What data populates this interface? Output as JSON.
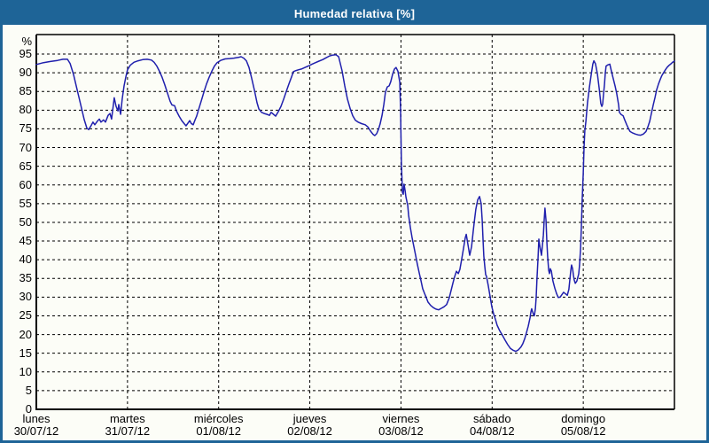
{
  "window": {
    "title": "Humedad relativa [%]"
  },
  "colors": {
    "titlebar_bg": "#1e6497",
    "window_border": "#1e6497",
    "panel_bg": "#fcfdf7",
    "grid": "#000000",
    "axis_frame": "#000000",
    "line": "#1f1fad",
    "title_text": "#ffffff",
    "label_text": "#000000"
  },
  "chart_data": {
    "type": "line",
    "title": "Humedad relativa [%]",
    "y_unit_label": "%",
    "ylim": [
      0,
      100
    ],
    "y_ticks": [
      0,
      5,
      10,
      15,
      20,
      25,
      30,
      35,
      40,
      45,
      50,
      55,
      60,
      65,
      70,
      75,
      80,
      85,
      90,
      95
    ],
    "grid": "dashed",
    "legend": "none",
    "x_hours_span": 168,
    "x_axis_days": [
      {
        "name": "lunes",
        "date": "30/07/12"
      },
      {
        "name": "martes",
        "date": "31/07/12"
      },
      {
        "name": "miércoles",
        "date": "01/08/12"
      },
      {
        "name": "jueves",
        "date": "02/08/12"
      },
      {
        "name": "viernes",
        "date": "03/08/12"
      },
      {
        "name": "sábado",
        "date": "04/08/12"
      },
      {
        "name": "domingo",
        "date": "05/08/12"
      }
    ],
    "series": [
      {
        "name": "Humedad relativa [%]",
        "color": "#1f1fad",
        "points": [
          [
            0,
            92.2
          ],
          [
            1.9,
            92.7
          ],
          [
            3.7,
            93
          ],
          [
            5.6,
            93.3
          ],
          [
            7,
            93.6
          ],
          [
            8.2,
            93.6
          ],
          [
            8.9,
            92.5
          ],
          [
            9.8,
            89.5
          ],
          [
            10.5,
            86.5
          ],
          [
            11.2,
            83.5
          ],
          [
            11.9,
            80.5
          ],
          [
            12.6,
            77.5
          ],
          [
            13.3,
            75.2
          ],
          [
            13.8,
            74.8
          ],
          [
            14.5,
            76
          ],
          [
            14.9,
            76.8
          ],
          [
            15.4,
            76.1
          ],
          [
            16.1,
            77.1
          ],
          [
            16.6,
            77.6
          ],
          [
            17,
            76.8
          ],
          [
            17.7,
            77.4
          ],
          [
            18.2,
            76.8
          ],
          [
            18.9,
            78.6
          ],
          [
            19.4,
            79.1
          ],
          [
            19.8,
            77.6
          ],
          [
            20.5,
            83.3
          ],
          [
            21,
            81
          ],
          [
            21.5,
            79.8
          ],
          [
            21.7,
            81.5
          ],
          [
            22.2,
            78.9
          ],
          [
            22.6,
            83
          ],
          [
            23.1,
            86.5
          ],
          [
            23.6,
            89
          ],
          [
            24,
            90.8
          ],
          [
            24.7,
            92
          ],
          [
            25.7,
            92.8
          ],
          [
            26.8,
            93.2
          ],
          [
            28,
            93.5
          ],
          [
            29.2,
            93.6
          ],
          [
            30.3,
            93.4
          ],
          [
            31,
            92.8
          ],
          [
            31.7,
            91.8
          ],
          [
            32.4,
            90.4
          ],
          [
            33.1,
            88.8
          ],
          [
            33.8,
            86.8
          ],
          [
            34.5,
            84.6
          ],
          [
            35.2,
            82.4
          ],
          [
            35.7,
            81.4
          ],
          [
            36.4,
            81.2
          ],
          [
            36.9,
            79.8
          ],
          [
            37.6,
            78.4
          ],
          [
            38.3,
            77.2
          ],
          [
            39,
            76.3
          ],
          [
            39.4,
            75.8
          ],
          [
            39.9,
            76.5
          ],
          [
            40.4,
            77.2
          ],
          [
            40.8,
            76.4
          ],
          [
            41.3,
            76.1
          ],
          [
            41.8,
            77.4
          ],
          [
            42.2,
            78.4
          ],
          [
            42.7,
            80.1
          ],
          [
            43.4,
            82.4
          ],
          [
            44.1,
            84.8
          ],
          [
            44.8,
            87
          ],
          [
            45.5,
            88.8
          ],
          [
            46.2,
            90.4
          ],
          [
            46.9,
            91.8
          ],
          [
            47.6,
            92.7
          ],
          [
            48.5,
            93.3
          ],
          [
            49.7,
            93.7
          ],
          [
            50.9,
            93.8
          ],
          [
            52,
            93.9
          ],
          [
            53.2,
            94.1
          ],
          [
            53.9,
            94.3
          ],
          [
            54.6,
            93.9
          ],
          [
            55.3,
            93.2
          ],
          [
            56,
            91.4
          ],
          [
            56.7,
            88.5
          ],
          [
            57.4,
            85.4
          ],
          [
            58.1,
            82
          ],
          [
            58.6,
            80.3
          ],
          [
            59.3,
            79.4
          ],
          [
            60,
            79.1
          ],
          [
            60.7,
            78.9
          ],
          [
            61.4,
            78.6
          ],
          [
            61.8,
            79.4
          ],
          [
            62.3,
            79
          ],
          [
            63,
            78.4
          ],
          [
            63.7,
            79.6
          ],
          [
            64.4,
            81
          ],
          [
            65.1,
            82.9
          ],
          [
            65.8,
            85
          ],
          [
            66.5,
            87
          ],
          [
            67.2,
            88.9
          ],
          [
            67.7,
            90.3
          ],
          [
            68.4,
            90.6
          ],
          [
            69.1,
            90.8
          ],
          [
            69.8,
            91
          ],
          [
            70.7,
            91.4
          ],
          [
            71.6,
            91.8
          ],
          [
            72.6,
            92.3
          ],
          [
            73.5,
            92.7
          ],
          [
            74.4,
            93.1
          ],
          [
            75.4,
            93.5
          ],
          [
            76.3,
            94
          ],
          [
            77.2,
            94.5
          ],
          [
            77.9,
            94.7
          ],
          [
            78.9,
            94.8
          ],
          [
            79.6,
            94.3
          ],
          [
            80.5,
            90.5
          ],
          [
            81.2,
            86.5
          ],
          [
            81.9,
            83
          ],
          [
            82.6,
            80.5
          ],
          [
            83.3,
            78.5
          ],
          [
            84,
            77.3
          ],
          [
            84.7,
            76.8
          ],
          [
            85.6,
            76.4
          ],
          [
            86.6,
            76.1
          ],
          [
            87.3,
            75.5
          ],
          [
            88,
            74.4
          ],
          [
            88.7,
            73.5
          ],
          [
            89.1,
            73.2
          ],
          [
            89.6,
            73.7
          ],
          [
            90.1,
            74.9
          ],
          [
            90.5,
            76.3
          ],
          [
            91,
            78.5
          ],
          [
            91.5,
            81.5
          ],
          [
            91.9,
            84.8
          ],
          [
            92.4,
            86.2
          ],
          [
            92.9,
            86.5
          ],
          [
            93.3,
            87.6
          ],
          [
            93.8,
            89.6
          ],
          [
            94.3,
            91
          ],
          [
            94.7,
            91.4
          ],
          [
            95.2,
            90.4
          ],
          [
            95.7,
            87.5
          ],
          [
            95.9,
            80
          ],
          [
            96.1,
            66
          ],
          [
            96.4,
            58
          ],
          [
            96.6,
            57.5
          ],
          [
            96.8,
            60.2
          ],
          [
            97.1,
            58.5
          ],
          [
            97.3,
            56.8
          ],
          [
            97.8,
            54.5
          ],
          [
            98,
            52
          ],
          [
            98.5,
            48.5
          ],
          [
            98.9,
            46
          ],
          [
            99.4,
            43.5
          ],
          [
            99.9,
            41
          ],
          [
            100.3,
            38.8
          ],
          [
            100.8,
            36.5
          ],
          [
            101.3,
            34.3
          ],
          [
            101.7,
            32.3
          ],
          [
            102.2,
            31
          ],
          [
            102.7,
            29.8
          ],
          [
            103.1,
            28.7
          ],
          [
            103.8,
            27.8
          ],
          [
            104.5,
            27.2
          ],
          [
            105.2,
            26.8
          ],
          [
            105.9,
            26.6
          ],
          [
            106.6,
            27
          ],
          [
            107.3,
            27.4
          ],
          [
            108,
            28
          ],
          [
            108.7,
            29.8
          ],
          [
            109.2,
            31.8
          ],
          [
            109.7,
            33.8
          ],
          [
            110.1,
            35.4
          ],
          [
            110.6,
            36.9
          ],
          [
            111.1,
            36.3
          ],
          [
            111.5,
            37.4
          ],
          [
            112,
            40.2
          ],
          [
            112.5,
            43.2
          ],
          [
            112.9,
            45.8
          ],
          [
            113.2,
            46.8
          ],
          [
            113.6,
            44.2
          ],
          [
            114.1,
            41.2
          ],
          [
            114.6,
            43.5
          ],
          [
            115,
            47.5
          ],
          [
            115.3,
            50
          ],
          [
            115.7,
            53.5
          ],
          [
            116.2,
            56
          ],
          [
            116.7,
            56.9
          ],
          [
            117.1,
            55
          ],
          [
            117.4,
            50.5
          ],
          [
            117.6,
            45.5
          ],
          [
            117.8,
            41
          ],
          [
            118.1,
            38
          ],
          [
            118.3,
            36
          ],
          [
            118.5,
            35.6
          ],
          [
            119,
            33
          ],
          [
            119.5,
            30
          ],
          [
            119.9,
            27.5
          ],
          [
            120.4,
            25.5
          ],
          [
            120.9,
            24
          ],
          [
            121.3,
            22.5
          ],
          [
            122,
            21
          ],
          [
            122.7,
            19.8
          ],
          [
            123.4,
            18.5
          ],
          [
            124.1,
            17.3
          ],
          [
            124.8,
            16.3
          ],
          [
            125.5,
            15.8
          ],
          [
            126.2,
            15.5
          ],
          [
            126.9,
            15.9
          ],
          [
            127.6,
            16.7
          ],
          [
            128.1,
            17.6
          ],
          [
            128.6,
            18.9
          ],
          [
            129,
            20.4
          ],
          [
            129.5,
            22.2
          ],
          [
            130,
            24.5
          ],
          [
            130.2,
            26
          ],
          [
            130.4,
            26.9
          ],
          [
            130.9,
            25.3
          ],
          [
            131.1,
            25
          ],
          [
            131.4,
            26.9
          ],
          [
            131.6,
            30
          ],
          [
            131.8,
            35
          ],
          [
            132.1,
            40.5
          ],
          [
            132.3,
            45.5
          ],
          [
            132.5,
            44
          ],
          [
            132.8,
            42.3
          ],
          [
            133,
            41.2
          ],
          [
            133.2,
            43.5
          ],
          [
            133.5,
            46.5
          ],
          [
            133.7,
            50.5
          ],
          [
            133.9,
            53.8
          ],
          [
            134.2,
            50.5
          ],
          [
            134.4,
            45
          ],
          [
            134.6,
            41
          ],
          [
            134.9,
            37.2
          ],
          [
            135.1,
            36.3
          ],
          [
            135.3,
            37.6
          ],
          [
            135.6,
            37
          ],
          [
            135.8,
            35.6
          ],
          [
            136,
            34.3
          ],
          [
            136.5,
            32.4
          ],
          [
            137,
            30.9
          ],
          [
            137.4,
            29.9
          ],
          [
            137.9,
            30
          ],
          [
            138.4,
            30.7
          ],
          [
            138.8,
            31.3
          ],
          [
            139.3,
            30.9
          ],
          [
            139.8,
            30.5
          ],
          [
            140.2,
            32.1
          ],
          [
            140.7,
            37
          ],
          [
            140.9,
            38.6
          ],
          [
            141.2,
            37.6
          ],
          [
            141.4,
            35.9
          ],
          [
            141.6,
            34.6
          ],
          [
            141.9,
            33.7
          ],
          [
            142.3,
            34.3
          ],
          [
            142.8,
            36.2
          ],
          [
            143,
            38.5
          ],
          [
            143.3,
            43
          ],
          [
            143.5,
            49
          ],
          [
            143.7,
            56
          ],
          [
            144,
            63
          ],
          [
            144.2,
            70
          ],
          [
            144.4,
            74.5
          ],
          [
            144.7,
            77
          ],
          [
            145.1,
            82
          ],
          [
            145.6,
            86
          ],
          [
            146.1,
            89.5
          ],
          [
            146.5,
            92.3
          ],
          [
            146.8,
            93.2
          ],
          [
            147.2,
            92.4
          ],
          [
            147.7,
            89.8
          ],
          [
            148.2,
            85.8
          ],
          [
            148.6,
            81.8
          ],
          [
            148.9,
            81
          ],
          [
            149.1,
            81.6
          ],
          [
            149.3,
            84
          ],
          [
            149.6,
            87
          ],
          [
            149.8,
            90
          ],
          [
            150,
            91.8
          ],
          [
            150.5,
            92.1
          ],
          [
            151,
            92.3
          ],
          [
            151.4,
            90.4
          ],
          [
            151.9,
            88.4
          ],
          [
            152.4,
            86.4
          ],
          [
            152.8,
            84.4
          ],
          [
            153.3,
            81.4
          ],
          [
            153.5,
            79.4
          ],
          [
            154,
            78.8
          ],
          [
            154.5,
            78.5
          ],
          [
            154.9,
            77.4
          ],
          [
            155.4,
            76.2
          ],
          [
            155.9,
            75.1
          ],
          [
            156.3,
            74.3
          ],
          [
            157,
            73.9
          ],
          [
            157.7,
            73.6
          ],
          [
            158.4,
            73.4
          ],
          [
            159.1,
            73.3
          ],
          [
            159.8,
            73.6
          ],
          [
            160.5,
            74.3
          ],
          [
            161,
            75.5
          ],
          [
            161.5,
            77
          ],
          [
            161.9,
            79
          ],
          [
            162.4,
            81.3
          ],
          [
            162.9,
            83.4
          ],
          [
            163.3,
            85.4
          ],
          [
            163.8,
            87
          ],
          [
            164.3,
            88.3
          ],
          [
            164.7,
            89.3
          ],
          [
            165.2,
            90.1
          ],
          [
            165.7,
            90.9
          ],
          [
            166.1,
            91.5
          ],
          [
            166.6,
            92
          ],
          [
            167.1,
            92.4
          ],
          [
            167.5,
            92.8
          ],
          [
            168,
            93.1
          ]
        ]
      }
    ]
  }
}
